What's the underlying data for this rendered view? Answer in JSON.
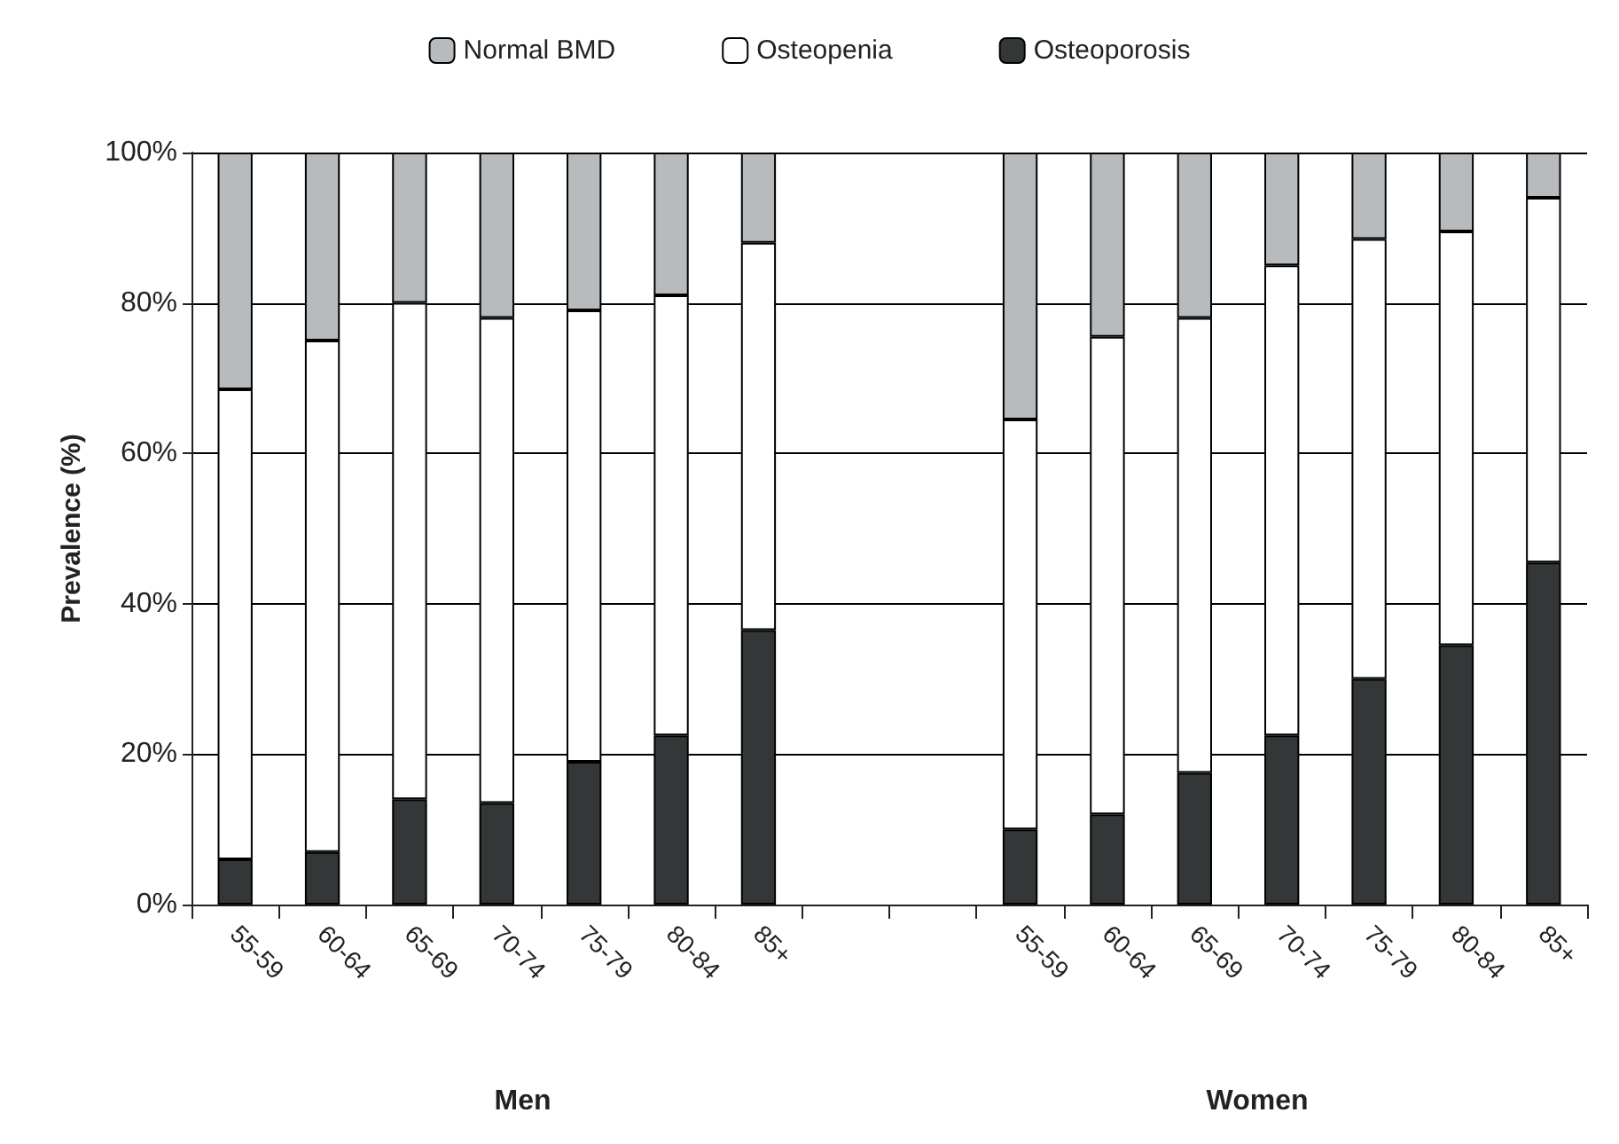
{
  "chart_data": {
    "type": "bar",
    "stacked": true,
    "ylabel": "Prevalence (%)",
    "categories": [
      "55-59",
      "60-64",
      "65-69",
      "70-74",
      "75-79",
      "80-84",
      "85+",
      null,
      null,
      "55-59",
      "60-64",
      "65-69",
      "70-74",
      "75-79",
      "80-84",
      "85+"
    ],
    "series": [
      {
        "name": "Osteoporosis",
        "color": "#333737",
        "values": [
          6,
          7,
          14,
          13.5,
          19,
          22.5,
          36.5,
          null,
          null,
          10,
          12,
          17.5,
          22.5,
          30,
          34.5,
          45.5
        ]
      },
      {
        "name": "Osteopenia",
        "color": "#ffffff",
        "values": [
          62.5,
          68,
          66,
          64.5,
          60,
          58.5,
          51.5,
          null,
          null,
          54.5,
          63.5,
          60.5,
          62.5,
          58.5,
          55,
          48.5
        ]
      },
      {
        "name": "Normal BMD",
        "color": "#b7bbbe",
        "values": [
          31.5,
          25,
          20,
          22,
          21,
          19,
          12,
          null,
          null,
          35.5,
          24.5,
          22,
          15,
          11.5,
          10.5,
          6
        ]
      }
    ],
    "ylim": [
      0,
      100
    ],
    "yticks": [
      {
        "value": 0,
        "label": "0%"
      },
      {
        "value": 20,
        "label": "20%"
      },
      {
        "value": 40,
        "label": "40%"
      },
      {
        "value": 60,
        "label": "60%"
      },
      {
        "value": 80,
        "label": "80%"
      },
      {
        "value": 100,
        "label": "100%"
      }
    ],
    "grid": "y",
    "legend": "top",
    "annotations": [
      "Men",
      "Women"
    ]
  }
}
